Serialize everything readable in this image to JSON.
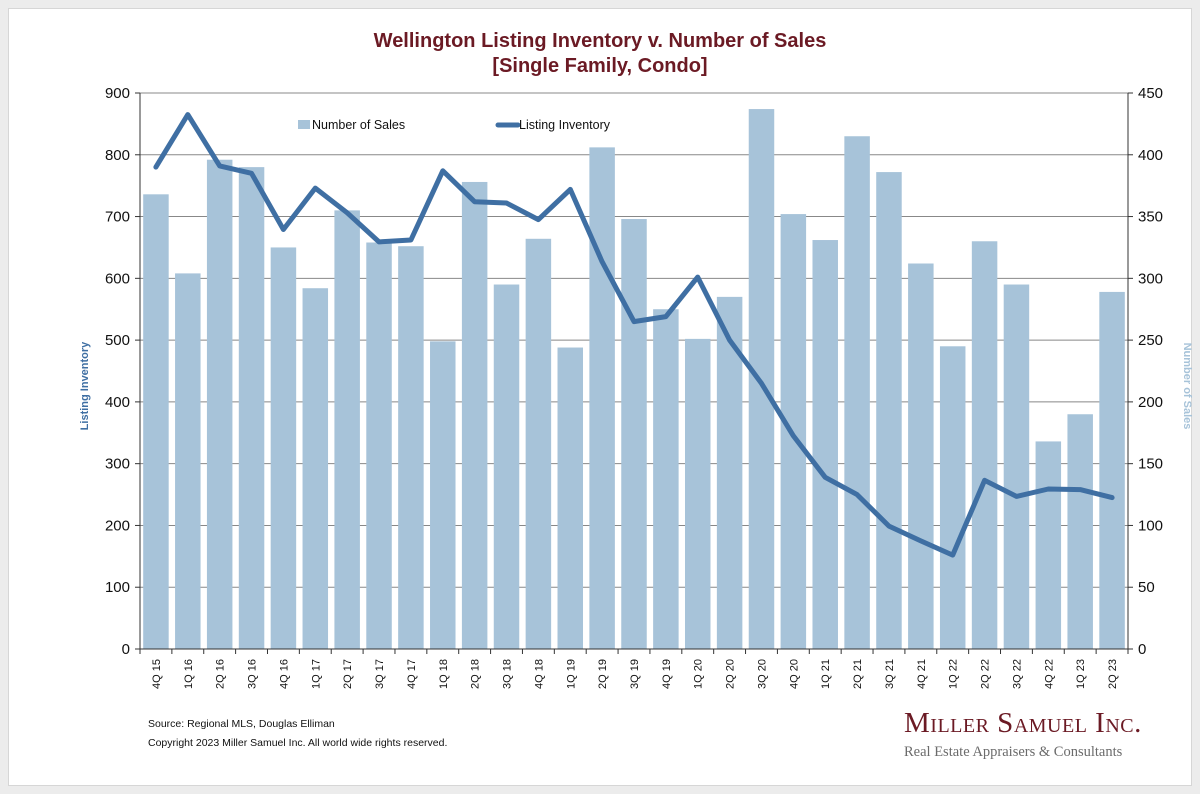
{
  "header": {
    "title_line1": "Wellington Listing Inventory v. Number of Sales",
    "title_line2": "[Single Family, Condo]"
  },
  "footer": {
    "source": "Source: Regional MLS, Douglas Elliman",
    "copyright": "Copyright 2023 Miller Samuel Inc.  All world wide rights reserved."
  },
  "brand": {
    "name": "Miller Samuel Inc.",
    "tagline": "Real Estate Appraisers & Consultants"
  },
  "colors": {
    "bars": "#a7c3d9",
    "line": "#3f6fa3",
    "title": "#6b1a24",
    "axis_label_left": "#3f6fa3",
    "axis_label_right": "#a7c3d9",
    "grid": "#888888"
  },
  "chart_data": {
    "type": "bar",
    "title": "Wellington Listing Inventory v. Number of Sales [Single Family, Condo]",
    "categories": [
      "4Q 15",
      "1Q 16",
      "2Q 16",
      "3Q 16",
      "4Q 16",
      "1Q 17",
      "2Q 17",
      "3Q 17",
      "4Q 17",
      "1Q 18",
      "2Q 18",
      "3Q 18",
      "4Q 18",
      "1Q 19",
      "2Q 19",
      "3Q 19",
      "4Q 19",
      "1Q 20",
      "2Q 20",
      "3Q 20",
      "4Q 20",
      "1Q 21",
      "2Q 21",
      "3Q 21",
      "4Q 21",
      "1Q 22",
      "2Q 22",
      "3Q 22",
      "4Q 22",
      "1Q 23",
      "2Q 23"
    ],
    "series": [
      {
        "name": "Number of Sales",
        "type": "bar",
        "axis": "right",
        "values": [
          368,
          304,
          396,
          390,
          325,
          292,
          355,
          329,
          326,
          249,
          378,
          295,
          332,
          244,
          406,
          348,
          275,
          251,
          285,
          437,
          352,
          331,
          415,
          386,
          312,
          245,
          330,
          295,
          168,
          190,
          289
        ]
      },
      {
        "name": "Listing Inventory",
        "type": "line",
        "axis": "left",
        "values": [
          780,
          865,
          782,
          770,
          679,
          746,
          706,
          659,
          662,
          774,
          724,
          722,
          695,
          744,
          627,
          530,
          538,
          602,
          500,
          430,
          345,
          278,
          250,
          199,
          175,
          152,
          273,
          247,
          259,
          258,
          245
        ]
      }
    ],
    "ylabel": "Listing Inventory",
    "ylabel_right": "Number of Sales",
    "ylim": [
      0,
      900
    ],
    "ylim_right": [
      0,
      450
    ],
    "yticks": [
      0,
      100,
      200,
      300,
      400,
      500,
      600,
      700,
      800,
      900
    ],
    "yticks_right": [
      0,
      50,
      100,
      150,
      200,
      250,
      300,
      350,
      400,
      450
    ],
    "grid": true,
    "legend": "top-center"
  }
}
